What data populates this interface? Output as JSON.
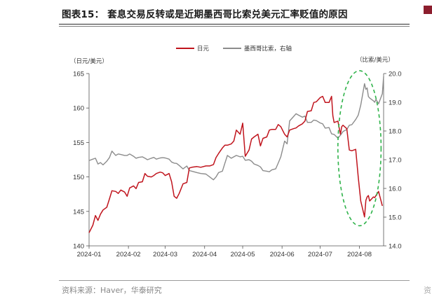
{
  "figure": {
    "title": "图表15： 套息交易反转或是近期墨西哥比索兑美元汇率贬值的原因",
    "source": "资料来源：Haver，华泰研究",
    "edge_source": "资"
  },
  "colors": {
    "jpy": "#c0141d",
    "mxn": "#8c8c8c",
    "ellipse": "#2fb34a",
    "axis": "#555555",
    "edge_mark": "#8c1d2d"
  },
  "chart_data": {
    "type": "line",
    "axis_units": {
      "left": "（日元/美元）",
      "right": "（比索/美元）"
    },
    "x_range": [
      "2024-01-01",
      "2024-08-20"
    ],
    "x_ticks": [
      {
        "date": "2024-01-01",
        "label": "2024-01"
      },
      {
        "date": "2024-02-01",
        "label": "2024-02"
      },
      {
        "date": "2024-03-01",
        "label": "2024-03"
      },
      {
        "date": "2024-04-01",
        "label": "2024-04"
      },
      {
        "date": "2024-05-01",
        "label": "2024-05"
      },
      {
        "date": "2024-06-01",
        "label": "2024-06"
      },
      {
        "date": "2024-07-01",
        "label": "2024-07"
      },
      {
        "date": "2024-08-01",
        "label": "2024-08"
      }
    ],
    "y_left": {
      "min": 140,
      "max": 165,
      "ticks": [
        140,
        145,
        150,
        155,
        160,
        165
      ]
    },
    "y_right": {
      "min": 14,
      "max": 20,
      "ticks": [
        14,
        15,
        16,
        17,
        18,
        19,
        20
      ],
      "tick_labels": [
        "14.0",
        "15.0",
        "16.0",
        "17.0",
        "18.0",
        "19.0",
        "20.0"
      ]
    },
    "legend": {
      "position": "top-center"
    },
    "annotation": {
      "shape": "dashed-ellipse",
      "center": [
        "2024-08-01",
        17.4
      ],
      "radius_days": 17,
      "radius_value": 2.7
    },
    "series": [
      {
        "name": "日元",
        "axis": "left",
        "points": [
          [
            "2024-01-01",
            141.9
          ],
          [
            "2024-01-04",
            143.0
          ],
          [
            "2024-01-06",
            144.4
          ],
          [
            "2024-01-08",
            143.7
          ],
          [
            "2024-01-10",
            144.6
          ],
          [
            "2024-01-12",
            145.2
          ],
          [
            "2024-01-15",
            145.6
          ],
          [
            "2024-01-17",
            146.8
          ],
          [
            "2024-01-19",
            148.0
          ],
          [
            "2024-01-22",
            147.9
          ],
          [
            "2024-01-24",
            147.6
          ],
          [
            "2024-01-26",
            148.1
          ],
          [
            "2024-01-29",
            147.8
          ],
          [
            "2024-01-31",
            147.2
          ],
          [
            "2024-02-02",
            148.4
          ],
          [
            "2024-02-05",
            148.7
          ],
          [
            "2024-02-07",
            148.3
          ],
          [
            "2024-02-09",
            149.2
          ],
          [
            "2024-02-12",
            149.3
          ],
          [
            "2024-02-14",
            150.5
          ],
          [
            "2024-02-16",
            150.1
          ],
          [
            "2024-02-19",
            150.0
          ],
          [
            "2024-02-21",
            150.2
          ],
          [
            "2024-02-23",
            150.5
          ],
          [
            "2024-02-26",
            150.7
          ],
          [
            "2024-02-28",
            150.6
          ],
          [
            "2024-03-01",
            150.2
          ],
          [
            "2024-03-04",
            150.5
          ],
          [
            "2024-03-06",
            149.3
          ],
          [
            "2024-03-08",
            147.2
          ],
          [
            "2024-03-10",
            146.9
          ],
          [
            "2024-03-12",
            147.6
          ],
          [
            "2024-03-15",
            149.0
          ],
          [
            "2024-03-18",
            149.2
          ],
          [
            "2024-03-20",
            151.3
          ],
          [
            "2024-03-22",
            151.4
          ],
          [
            "2024-03-26",
            151.5
          ],
          [
            "2024-03-29",
            151.4
          ],
          [
            "2024-04-02",
            151.6
          ],
          [
            "2024-04-05",
            151.6
          ],
          [
            "2024-04-08",
            151.8
          ],
          [
            "2024-04-10",
            152.8
          ],
          [
            "2024-04-12",
            153.4
          ],
          [
            "2024-04-15",
            154.2
          ],
          [
            "2024-04-17",
            154.6
          ],
          [
            "2024-04-19",
            154.6
          ],
          [
            "2024-04-22",
            154.8
          ],
          [
            "2024-04-24",
            155.2
          ],
          [
            "2024-04-26",
            156.8
          ],
          [
            "2024-04-29",
            156.2
          ],
          [
            "2024-05-01",
            157.8
          ],
          [
            "2024-05-03",
            153.0
          ],
          [
            "2024-05-06",
            153.9
          ],
          [
            "2024-05-08",
            155.5
          ],
          [
            "2024-05-10",
            155.8
          ],
          [
            "2024-05-13",
            156.2
          ],
          [
            "2024-05-15",
            154.5
          ],
          [
            "2024-05-17",
            155.6
          ],
          [
            "2024-05-20",
            155.8
          ],
          [
            "2024-05-22",
            156.8
          ],
          [
            "2024-05-24",
            156.9
          ],
          [
            "2024-05-27",
            156.9
          ],
          [
            "2024-05-29",
            157.6
          ],
          [
            "2024-05-31",
            157.3
          ],
          [
            "2024-06-03",
            156.2
          ],
          [
            "2024-06-05",
            155.8
          ],
          [
            "2024-06-07",
            156.8
          ],
          [
            "2024-06-10",
            157.0
          ],
          [
            "2024-06-12",
            157.1
          ],
          [
            "2024-06-14",
            157.4
          ],
          [
            "2024-06-17",
            157.7
          ],
          [
            "2024-06-19",
            158.1
          ],
          [
            "2024-06-21",
            159.5
          ],
          [
            "2024-06-24",
            159.6
          ],
          [
            "2024-06-26",
            160.8
          ],
          [
            "2024-06-28",
            160.9
          ],
          [
            "2024-07-01",
            161.5
          ],
          [
            "2024-07-03",
            161.7
          ],
          [
            "2024-07-05",
            160.8
          ],
          [
            "2024-07-08",
            160.8
          ],
          [
            "2024-07-10",
            161.7
          ],
          [
            "2024-07-11",
            158.9
          ],
          [
            "2024-07-12",
            157.9
          ],
          [
            "2024-07-15",
            158.1
          ],
          [
            "2024-07-17",
            156.2
          ],
          [
            "2024-07-18",
            157.3
          ],
          [
            "2024-07-19",
            157.5
          ],
          [
            "2024-07-22",
            157.0
          ],
          [
            "2024-07-24",
            153.9
          ],
          [
            "2024-07-26",
            153.8
          ],
          [
            "2024-07-29",
            154.0
          ],
          [
            "2024-07-31",
            150.0
          ],
          [
            "2024-08-02",
            146.5
          ],
          [
            "2024-08-05",
            144.2
          ],
          [
            "2024-08-06",
            146.6
          ],
          [
            "2024-08-07",
            147.1
          ],
          [
            "2024-08-08",
            147.3
          ],
          [
            "2024-08-09",
            146.5
          ],
          [
            "2024-08-12",
            147.1
          ],
          [
            "2024-08-13",
            147.0
          ],
          [
            "2024-08-14",
            147.3
          ],
          [
            "2024-08-16",
            147.9
          ],
          [
            "2024-08-19",
            145.8
          ]
        ]
      },
      {
        "name": "墨西哥比索，右轴",
        "axis": "right",
        "points": [
          [
            "2024-01-01",
            16.97
          ],
          [
            "2024-01-04",
            17.02
          ],
          [
            "2024-01-06",
            17.05
          ],
          [
            "2024-01-08",
            16.85
          ],
          [
            "2024-01-10",
            16.9
          ],
          [
            "2024-01-12",
            16.82
          ],
          [
            "2024-01-15",
            16.95
          ],
          [
            "2024-01-17",
            17.07
          ],
          [
            "2024-01-19",
            17.3
          ],
          [
            "2024-01-22",
            17.15
          ],
          [
            "2024-01-24",
            17.2
          ],
          [
            "2024-01-26",
            17.18
          ],
          [
            "2024-01-29",
            17.15
          ],
          [
            "2024-01-31",
            17.15
          ],
          [
            "2024-02-02",
            17.2
          ],
          [
            "2024-02-05",
            17.12
          ],
          [
            "2024-02-07",
            17.05
          ],
          [
            "2024-02-09",
            17.08
          ],
          [
            "2024-02-12",
            17.1
          ],
          [
            "2024-02-14",
            17.05
          ],
          [
            "2024-02-16",
            17.0
          ],
          [
            "2024-02-19",
            17.05
          ],
          [
            "2024-02-21",
            17.08
          ],
          [
            "2024-02-23",
            17.02
          ],
          [
            "2024-02-26",
            17.06
          ],
          [
            "2024-02-28",
            17.07
          ],
          [
            "2024-03-01",
            17.06
          ],
          [
            "2024-03-04",
            17.02
          ],
          [
            "2024-03-06",
            16.92
          ],
          [
            "2024-03-08",
            16.88
          ],
          [
            "2024-03-10",
            16.87
          ],
          [
            "2024-03-12",
            16.8
          ],
          [
            "2024-03-15",
            16.68
          ],
          [
            "2024-03-18",
            16.78
          ],
          [
            "2024-03-20",
            16.62
          ],
          [
            "2024-03-22",
            16.6
          ],
          [
            "2024-03-26",
            16.55
          ],
          [
            "2024-03-29",
            16.52
          ],
          [
            "2024-04-02",
            16.5
          ],
          [
            "2024-04-05",
            16.4
          ],
          [
            "2024-04-08",
            16.3
          ],
          [
            "2024-04-10",
            16.4
          ],
          [
            "2024-04-12",
            16.55
          ],
          [
            "2024-04-15",
            16.6
          ],
          [
            "2024-04-17",
            16.88
          ],
          [
            "2024-04-19",
            17.15
          ],
          [
            "2024-04-22",
            17.05
          ],
          [
            "2024-04-24",
            17.1
          ],
          [
            "2024-04-26",
            17.15
          ],
          [
            "2024-04-29",
            17.1
          ],
          [
            "2024-05-01",
            17.12
          ],
          [
            "2024-05-03",
            16.98
          ],
          [
            "2024-05-06",
            17.0
          ],
          [
            "2024-05-08",
            16.95
          ],
          [
            "2024-05-10",
            16.85
          ],
          [
            "2024-05-13",
            16.8
          ],
          [
            "2024-05-15",
            16.75
          ],
          [
            "2024-05-17",
            16.62
          ],
          [
            "2024-05-20",
            16.6
          ],
          [
            "2024-05-22",
            16.58
          ],
          [
            "2024-05-24",
            16.65
          ],
          [
            "2024-05-27",
            16.68
          ],
          [
            "2024-05-29",
            16.88
          ],
          [
            "2024-05-31",
            17.1
          ],
          [
            "2024-06-03",
            17.65
          ],
          [
            "2024-06-05",
            17.55
          ],
          [
            "2024-06-07",
            18.35
          ],
          [
            "2024-06-10",
            18.5
          ],
          [
            "2024-06-12",
            18.6
          ],
          [
            "2024-06-14",
            18.55
          ],
          [
            "2024-06-17",
            18.48
          ],
          [
            "2024-06-19",
            18.52
          ],
          [
            "2024-06-21",
            18.3
          ],
          [
            "2024-06-24",
            18.3
          ],
          [
            "2024-06-26",
            18.38
          ],
          [
            "2024-06-28",
            18.36
          ],
          [
            "2024-07-01",
            18.28
          ],
          [
            "2024-07-03",
            18.25
          ],
          [
            "2024-07-05",
            18.1
          ],
          [
            "2024-07-08",
            18.12
          ],
          [
            "2024-07-10",
            17.9
          ],
          [
            "2024-07-12",
            17.88
          ],
          [
            "2024-07-15",
            17.75
          ],
          [
            "2024-07-17",
            17.85
          ],
          [
            "2024-07-19",
            17.98
          ],
          [
            "2024-07-22",
            18.05
          ],
          [
            "2024-07-24",
            18.2
          ],
          [
            "2024-07-26",
            18.22
          ],
          [
            "2024-07-29",
            18.4
          ],
          [
            "2024-07-31",
            18.55
          ],
          [
            "2024-08-02",
            18.9
          ],
          [
            "2024-08-05",
            19.65
          ],
          [
            "2024-08-06",
            19.45
          ],
          [
            "2024-08-07",
            19.5
          ],
          [
            "2024-08-08",
            19.2
          ],
          [
            "2024-08-09",
            19.15
          ],
          [
            "2024-08-12",
            19.05
          ],
          [
            "2024-08-13",
            19.0
          ],
          [
            "2024-08-14",
            19.1
          ],
          [
            "2024-08-16",
            18.95
          ],
          [
            "2024-08-19",
            19.3
          ],
          [
            "2024-08-20",
            19.9
          ]
        ]
      }
    ]
  }
}
